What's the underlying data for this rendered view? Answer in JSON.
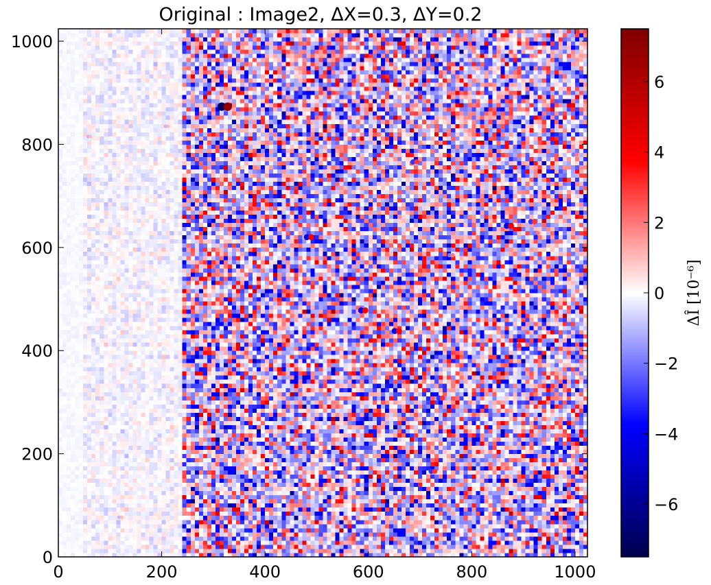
{
  "chart_data": {
    "type": "heatmap",
    "title": "Original : Image2, ΔX=0.3, ΔY=0.2",
    "x_range": [
      0,
      1024
    ],
    "y_range": [
      0,
      1024
    ],
    "x_ticks": [
      0,
      200,
      400,
      600,
      800,
      1000
    ],
    "y_ticks": [
      0,
      200,
      400,
      600,
      800,
      1000
    ],
    "colorbar": {
      "label": "ΔÎ [10⁻⁶]",
      "range": [
        -7.5,
        7.5
      ],
      "ticks": [
        6,
        4,
        2,
        0,
        -2,
        -4,
        -6
      ],
      "tick_labels": [
        "6",
        "4",
        "2",
        "0",
        "−2",
        "−4",
        "−6"
      ],
      "colormap": "seismic",
      "colors": [
        "#00004c",
        "#0000ff",
        "#ffffff",
        "#ff0000",
        "#7f0000"
      ]
    },
    "regions": [
      {
        "x": [
          0,
          45
        ],
        "description_level": "near zero"
      },
      {
        "x": [
          45,
          240
        ],
        "description_level": "low noise"
      },
      {
        "x": [
          240,
          1024
        ],
        "description_level": "high noise"
      }
    ],
    "features": [
      {
        "x": 322,
        "y": 873,
        "strength": 7
      },
      {
        "x": 485,
        "y": 620,
        "strength": 4
      },
      {
        "x": 590,
        "y": 478,
        "strength": 4
      },
      {
        "x": 655,
        "y": 438,
        "strength": 4
      },
      {
        "x": 690,
        "y": 766,
        "strength": 3
      },
      {
        "x": 872,
        "y": 642,
        "strength": 4
      },
      {
        "x": 918,
        "y": 650,
        "strength": 3
      },
      {
        "x": 925,
        "y": 628,
        "strength": 2
      },
      {
        "x": 888,
        "y": 410,
        "strength": 3
      },
      {
        "x": 740,
        "y": 308,
        "strength": 3
      },
      {
        "x": 725,
        "y": 166,
        "strength": 3
      },
      {
        "x": 345,
        "y": 228,
        "strength": 2
      },
      {
        "x": 760,
        "y": 585,
        "strength": 2
      },
      {
        "x": 1000,
        "y": 780,
        "strength": 2
      },
      {
        "x": 210,
        "y": 835,
        "strength": 1
      },
      {
        "x": 120,
        "y": 77,
        "strength": 1
      },
      {
        "x": 60,
        "y": 815,
        "strength": 1
      }
    ]
  }
}
